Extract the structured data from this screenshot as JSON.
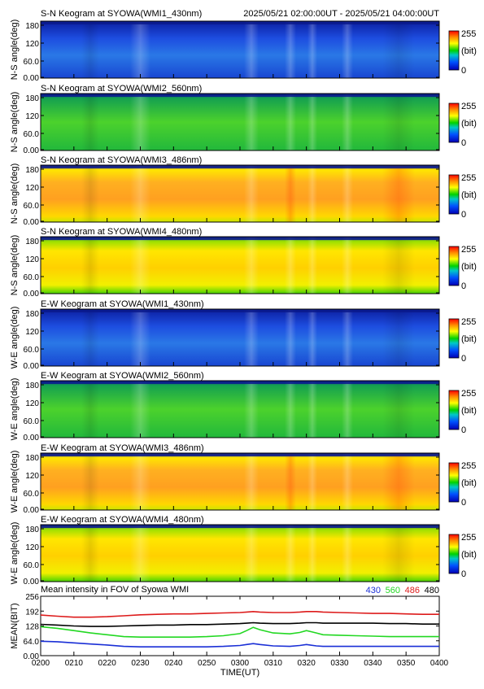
{
  "header": {
    "time_range": "2025/05/21 02:00:00UT - 2025/05/21 04:00:00UT"
  },
  "colorbar": {
    "max_label": "255",
    "unit_label": "(bit)",
    "min_label": "0"
  },
  "keograms": [
    {
      "title": "S-N Keogram at SYOWA(WMI1_430nm)",
      "ylabel": "N-S angle(deg)",
      "yticks": [
        "180",
        "120",
        "60.0",
        "0.00"
      ],
      "palette": "blue"
    },
    {
      "title": "S-N Keogram at SYOWA(WMI2_560nm)",
      "ylabel": "N-S angle(deg)",
      "yticks": [
        "180",
        "120",
        "60.0",
        "0.00"
      ],
      "palette": "green"
    },
    {
      "title": "S-N Keogram at SYOWA(WMI3_486nm)",
      "ylabel": "N-S angle(deg)",
      "yticks": [
        "180",
        "120",
        "60.0",
        "0.00"
      ],
      "palette": "orange"
    },
    {
      "title": "S-N Keogram at SYOWA(WMI4_480nm)",
      "ylabel": "N-S angle(deg)",
      "yticks": [
        "180",
        "120",
        "60.0",
        "0.00"
      ],
      "palette": "yellow"
    },
    {
      "title": "E-W Keogram at SYOWA(WMI1_430nm)",
      "ylabel": "W-E angle(deg)",
      "yticks": [
        "180",
        "120",
        "60.0",
        "0.00"
      ],
      "palette": "blue"
    },
    {
      "title": "E-W Keogram at SYOWA(WMI2_560nm)",
      "ylabel": "W-E angle(deg)",
      "yticks": [
        "180",
        "120",
        "60.0",
        "0.00"
      ],
      "palette": "green"
    },
    {
      "title": "E-W Keogram at SYOWA(WMI3_486nm)",
      "ylabel": "W-E angle(deg)",
      "yticks": [
        "180",
        "120",
        "60.0",
        "0.00"
      ],
      "palette": "orange"
    },
    {
      "title": "E-W Keogram at SYOWA(WMI4_480nm)",
      "ylabel": "W-E angle(deg)",
      "yticks": [
        "180",
        "120",
        "60.0",
        "0.00"
      ],
      "palette": "yellow"
    }
  ],
  "chart_data": {
    "type": "line",
    "title": "Mean intensity in FOV of Syowa WMI",
    "xlabel": "TIME(UT)",
    "ylabel": "MEAN(BIT)",
    "xlim": [
      0,
      120
    ],
    "ylim": [
      0,
      256
    ],
    "x_tick_labels": [
      "0200",
      "0210",
      "0220",
      "0230",
      "0240",
      "0250",
      "0300",
      "0310",
      "0320",
      "0330",
      "0340",
      "0350",
      "0400"
    ],
    "y_tick_labels": [
      "256",
      "192",
      "128",
      "64.0",
      "0.00"
    ],
    "x": [
      0,
      5,
      10,
      15,
      20,
      25,
      30,
      35,
      40,
      45,
      50,
      55,
      60,
      62,
      64,
      66,
      70,
      75,
      78,
      80,
      83,
      85,
      90,
      95,
      100,
      105,
      110,
      115,
      120
    ],
    "series": [
      {
        "name": "430",
        "color": "#1a2fd6",
        "values": [
          62,
          60,
          55,
          50,
          46,
          40,
          38,
          38,
          38,
          38,
          38,
          40,
          44,
          48,
          52,
          48,
          42,
          40,
          44,
          48,
          42,
          40,
          40,
          40,
          40,
          40,
          40,
          40,
          40
        ]
      },
      {
        "name": "560",
        "color": "#22d822",
        "values": [
          125,
          118,
          108,
          98,
          90,
          82,
          80,
          80,
          80,
          80,
          82,
          86,
          95,
          108,
          122,
          112,
          98,
          94,
          100,
          108,
          98,
          90,
          88,
          86,
          84,
          82,
          82,
          82,
          82
        ]
      },
      {
        "name": "486",
        "color": "#dd1b1b",
        "values": [
          175,
          170,
          166,
          166,
          168,
          172,
          176,
          178,
          180,
          180,
          182,
          184,
          186,
          188,
          190,
          188,
          186,
          186,
          188,
          190,
          190,
          188,
          186,
          184,
          182,
          182,
          180,
          178,
          178
        ]
      },
      {
        "name": "480",
        "color": "#000000",
        "values": [
          135,
          132,
          128,
          126,
          126,
          128,
          130,
          132,
          132,
          134,
          134,
          136,
          138,
          140,
          142,
          140,
          138,
          138,
          140,
          142,
          142,
          140,
          140,
          140,
          140,
          138,
          138,
          136,
          136
        ]
      }
    ]
  }
}
